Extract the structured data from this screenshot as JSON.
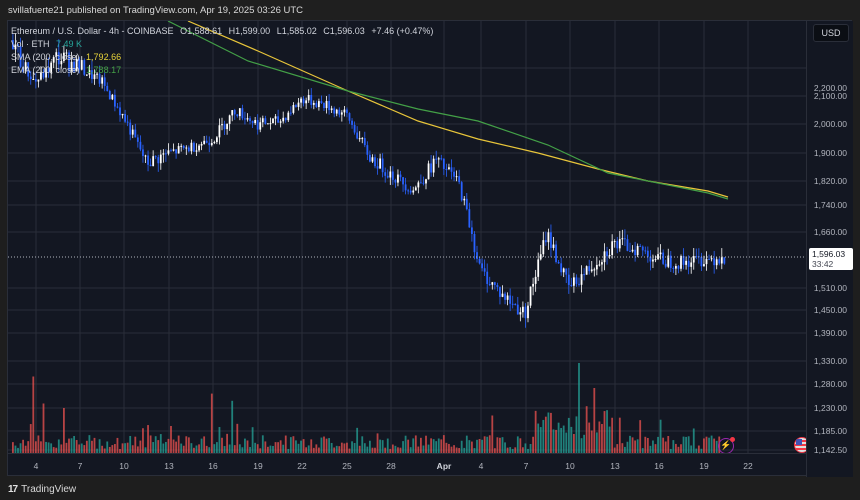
{
  "publisher_bar": {
    "text": "svillafuerte21 published on TradingView.com, Apr 19, 2025 03:26 UTC"
  },
  "legend": {
    "symbol": "Ethereum / U.S. Dollar - 4h - COINBASE",
    "open": "O1,588.61",
    "high": "H1,599.00",
    "low": "L1,585.02",
    "close": "C1,596.03",
    "change": "+7.46 (+0.47%)",
    "vol_label": "Vol · ETH",
    "vol_value": "7.49 K",
    "sma_label": "SMA (200, close)",
    "sma_value": "1,792.66",
    "ema_label": "EMA (200, close)",
    "ema_value": "1,788.17"
  },
  "price_axis": {
    "currency_button": "USD",
    "last_price": "1,596.03",
    "countdown": "33:42",
    "ticks": [
      "2,200.00",
      "2,100.00",
      "2,000.00",
      "1,900.00",
      "1,820.00",
      "1,740.00",
      "1,660.00",
      "1,510.00",
      "1,450.00",
      "1,390.00",
      "1,330.00",
      "1,280.00",
      "1,230.00",
      "1,185.00",
      "1,142.50"
    ]
  },
  "time_axis": {
    "labels": [
      "4",
      "7",
      "10",
      "13",
      "16",
      "19",
      "22",
      "25",
      "28",
      "Apr",
      "4",
      "7",
      "10",
      "13",
      "16",
      "19",
      "22"
    ]
  },
  "footer": {
    "logo": "17",
    "brand": "TradingView"
  },
  "colors": {
    "background": "#131722",
    "candle_up": "#ffffff",
    "candle_down": "#2962ff",
    "volume_up": "#26a69a",
    "volume_down": "#ef5350",
    "sma": "#e8c53a",
    "ema": "#43a047",
    "grid": "#2a2e39"
  },
  "chart_data": {
    "type": "candlestick",
    "title": "Ethereum / U.S. Dollar - 4h - COINBASE",
    "xlabel": "",
    "ylabel": "USD",
    "x_range": [
      "Mar 2, 2025",
      "Apr 19, 2025"
    ],
    "ylim": [
      1142.5,
      2300
    ],
    "grid": true,
    "last": {
      "open": 1588.61,
      "high": 1599.0,
      "low": 1585.02,
      "close": 1596.03,
      "change": 7.46,
      "change_pct": 0.47
    },
    "approx_close_path": {
      "dates": [
        "Mar 3",
        "Mar 4",
        "Mar 5",
        "Mar 7",
        "Mar 9",
        "Mar 10",
        "Mar 11",
        "Mar 13",
        "Mar 16",
        "Mar 19",
        "Mar 20",
        "Mar 22",
        "Mar 24",
        "Mar 25",
        "Mar 27",
        "Mar 28",
        "Mar 30",
        "Apr 1",
        "Apr 2",
        "Apr 4",
        "Apr 6",
        "Apr 7",
        "Apr 8",
        "Apr 9",
        "Apr 10",
        "Apr 11",
        "Apr 13",
        "Apr 14",
        "Apr 15",
        "Apr 16",
        "Apr 17",
        "Apr 18",
        "Apr 19"
      ],
      "close": [
        2250,
        2150,
        2220,
        2200,
        2150,
        2020,
        1870,
        1900,
        1920,
        1950,
        2050,
        2000,
        2010,
        2090,
        2070,
        2030,
        1890,
        1840,
        1790,
        1880,
        1820,
        1560,
        1490,
        1440,
        1660,
        1510,
        1570,
        1630,
        1620,
        1590,
        1580,
        1590,
        1596
      ]
    },
    "series": [
      {
        "name": "SMA (200, close)",
        "last": 1792.66,
        "color": "#e8c53a",
        "approx_path": {
          "x": [
            "Mar 2",
            "Mar 25",
            "Apr 1",
            "Apr 10",
            "Apr 19"
          ],
          "y": [
            2400,
            2210,
            2000,
            1880,
            1792.66
          ]
        }
      },
      {
        "name": "EMA (200, close)",
        "last": 1788.17,
        "color": "#43a047",
        "approx_path": {
          "x": [
            "Mar 2",
            "Mar 25",
            "Apr 1",
            "Apr 10",
            "Apr 19"
          ],
          "y": [
            2330,
            2200,
            2030,
            1900,
            1788.17
          ]
        }
      },
      {
        "name": "Vol · ETH",
        "last": "7.49 K",
        "type": "bar",
        "notable_peaks": [
          {
            "x": "Mar 3",
            "relative": 0.85
          },
          {
            "x": "Mar 12",
            "relative": 0.66
          },
          {
            "x": "Apr 7",
            "relative": 1.0
          },
          {
            "x": "Apr 9",
            "relative": 0.6
          }
        ]
      }
    ],
    "legend": [
      "Vol · ETH 7.49 K",
      "SMA (200, close) 1,792.66",
      "EMA (200, close) 1,788.17"
    ],
    "legend_position": "top-left"
  }
}
